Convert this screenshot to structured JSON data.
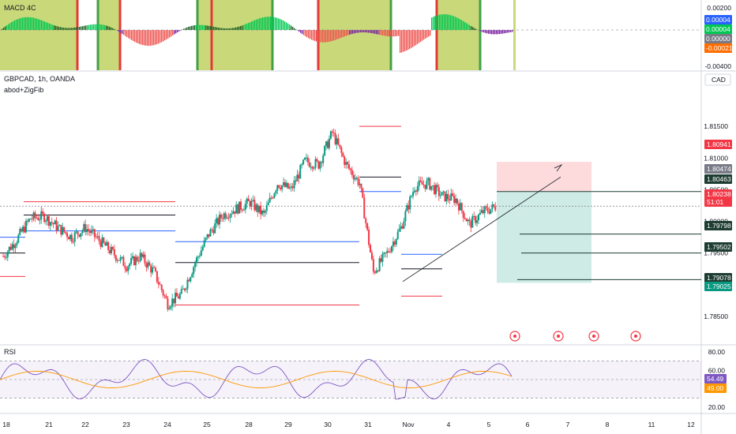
{
  "chart_data": {
    "type": "candlestick",
    "symbol": "GBPCAD",
    "timeframe": "1h",
    "exchange": "OANDA",
    "title": "GBPCAD, 1h, OANDA",
    "indicator_label": "abod+ZigFib",
    "currency": "CAD",
    "x_labels": [
      "18",
      "21",
      "22",
      "23",
      "24",
      "25",
      "28",
      "29",
      "30",
      "31",
      "Nov",
      "4",
      "5",
      "6",
      "7",
      "8",
      "11",
      "12"
    ],
    "price_axis": {
      "ticks": [
        "1.81500",
        "1.81000",
        "1.80500",
        "1.80000",
        "1.79500",
        "1.79000",
        "1.78500"
      ],
      "ylim": [
        1.782,
        1.82
      ],
      "tick_values": [
        1.815,
        1.81,
        1.805,
        1.8,
        1.795,
        1.79,
        1.785
      ]
    },
    "price_tags": [
      {
        "value": "1.80941",
        "color": "#f23645",
        "text_color": "#ffffff"
      },
      {
        "value": "1.80474",
        "color": "#787b86",
        "text_color": "#ffffff"
      },
      {
        "value": "1.80463",
        "color": "#1e3d32",
        "text_color": "#ffffff"
      },
      {
        "value": "1.80238",
        "color": "#f23645",
        "text_color": "#ffffff"
      },
      {
        "value": "51:01",
        "color": "#f23645",
        "text_color": "#ffffff"
      },
      {
        "value": "1.79798",
        "color": "#1e3d32",
        "text_color": "#ffffff"
      },
      {
        "value": "1.79502",
        "color": "#1e3d32",
        "text_color": "#ffffff"
      },
      {
        "value": "1.79078",
        "color": "#1e3d32",
        "text_color": "#ffffff"
      },
      {
        "value": "1.79025",
        "color": "#089981",
        "text_color": "#ffffff"
      }
    ],
    "price_series_approx": [
      [
        18,
        1.7945
      ],
      [
        18.5,
        1.7972
      ],
      [
        19,
        1.8005
      ],
      [
        19.5,
        1.8008
      ],
      [
        20,
        1.799
      ],
      [
        20.5,
        1.7975
      ],
      [
        21,
        1.799
      ],
      [
        21.5,
        1.797
      ],
      [
        22,
        1.795
      ],
      [
        22.5,
        1.793
      ],
      [
        23,
        1.7945
      ],
      [
        23.5,
        1.792
      ],
      [
        24,
        1.787
      ],
      [
        24.5,
        1.7885
      ],
      [
        25,
        1.7935
      ],
      [
        25.5,
        1.798
      ],
      [
        26,
        1.801
      ],
      [
        26.5,
        1.802
      ],
      [
        27,
        1.803
      ],
      [
        27.5,
        1.801
      ],
      [
        28,
        1.806
      ],
      [
        28.5,
        1.805
      ],
      [
        29,
        1.8095
      ],
      [
        29.5,
        1.809
      ],
      [
        30,
        1.814
      ],
      [
        30.5,
        1.809
      ],
      [
        31,
        1.806
      ],
      [
        31.5,
        1.792
      ],
      [
        32,
        1.795
      ],
      [
        32.5,
        1.799
      ],
      [
        33,
        1.8055
      ],
      [
        33.5,
        1.806
      ],
      [
        34,
        1.804
      ],
      [
        34.5,
        1.8035
      ],
      [
        35,
        1.7995
      ],
      [
        35.5,
        1.8015
      ],
      [
        36,
        1.8024
      ]
    ],
    "levels": [
      {
        "value": 1.8031,
        "color": "#f23645"
      },
      {
        "value": 1.801,
        "color": "#131722"
      },
      {
        "value": 1.7985,
        "color": "#2962ff"
      },
      {
        "value": 1.7925,
        "color": "#131722"
      },
      {
        "value": 1.79,
        "color": "#131722"
      },
      {
        "value": 1.7868,
        "color": "#f23645"
      },
      {
        "value": 1.815,
        "color": "#f23645"
      },
      {
        "value": 1.807,
        "color": "#131722"
      },
      {
        "value": 1.8047,
        "color": "#2962ff"
      },
      {
        "value": 1.7948,
        "color": "#2962ff"
      },
      {
        "value": 1.7923,
        "color": "#131722"
      },
      {
        "value": 1.7882,
        "color": "#f23645"
      }
    ],
    "position": {
      "stop": 1.8094,
      "entry": 1.8047,
      "target": 1.7903,
      "stop_color": "#f23645",
      "target_color": "#089981"
    },
    "macd_panel": {
      "label": "MACD 4C",
      "ticks": [
        "0.00200",
        "0.00000",
        "-0.00400"
      ],
      "tags": [
        {
          "value": "0.00004",
          "color": "#2962ff"
        },
        {
          "value": "0.00004",
          "color": "#00c853"
        },
        {
          "value": "0.00000",
          "color": "#787b86"
        },
        {
          "value": "-0.00021",
          "color": "#ff6d00"
        }
      ]
    },
    "rsi_panel": {
      "label": "RSI",
      "ticks": [
        "80.00",
        "60.00",
        "40.00",
        "20.00"
      ],
      "bounds": [
        70,
        30
      ],
      "tags": [
        {
          "value": "54.49",
          "color": "#7e57c2"
        },
        {
          "value": "49.00",
          "color": "#ff9800"
        }
      ]
    },
    "grid": false
  }
}
